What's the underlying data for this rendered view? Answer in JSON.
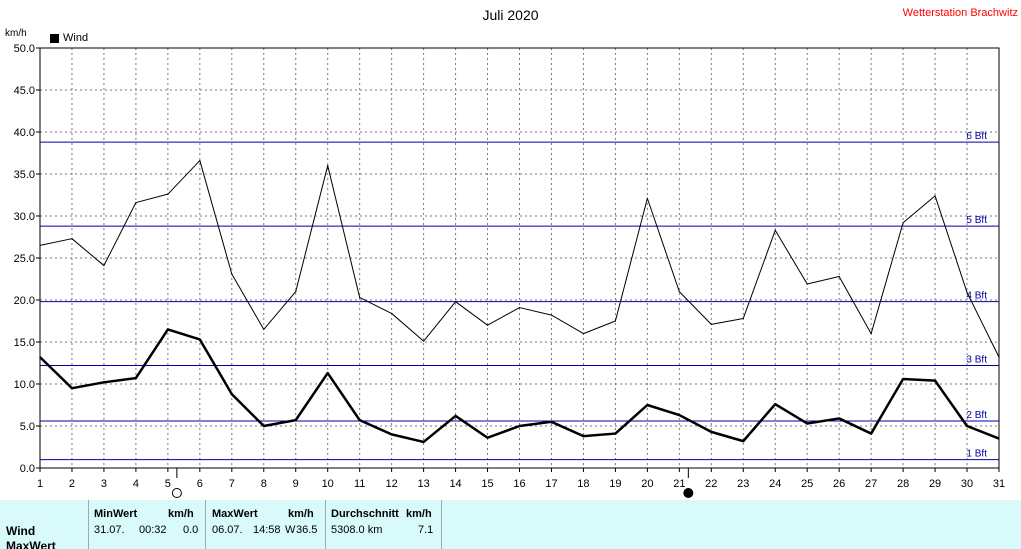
{
  "header": {
    "title": "Juli 2020",
    "station": "Wetterstation Brachwitz",
    "unit": "km/h",
    "legend_label": "Wind"
  },
  "chart_data": {
    "type": "line",
    "title": "Juli 2020",
    "ylabel": "km/h",
    "xlabel": "",
    "ylim": [
      0,
      50
    ],
    "xlim": [
      1,
      31
    ],
    "y_ticks": [
      "0.0",
      "5.0",
      "10.0",
      "15.0",
      "20.0",
      "25.0",
      "30.0",
      "35.0",
      "40.0",
      "45.0",
      "50.0"
    ],
    "x_ticks": [
      "1",
      "2",
      "3",
      "4",
      "5",
      "6",
      "7",
      "8",
      "9",
      "10",
      "11",
      "12",
      "13",
      "14",
      "15",
      "16",
      "17",
      "18",
      "19",
      "20",
      "21",
      "22",
      "23",
      "24",
      "25",
      "26",
      "27",
      "28",
      "29",
      "30",
      "31"
    ],
    "grid": true,
    "legend": "top-left",
    "x": [
      1,
      2,
      3,
      4,
      5,
      6,
      7,
      8,
      9,
      10,
      11,
      12,
      13,
      14,
      15,
      16,
      17,
      18,
      19,
      20,
      21,
      22,
      23,
      24,
      25,
      26,
      27,
      28,
      29,
      30,
      31
    ],
    "series": [
      {
        "name": "Wind",
        "style": "thick",
        "values": [
          13.2,
          9.5,
          10.2,
          10.7,
          16.5,
          15.3,
          8.8,
          5.0,
          5.7,
          11.3,
          5.7,
          4.0,
          3.1,
          6.2,
          3.6,
          5.0,
          5.5,
          3.8,
          4.1,
          7.5,
          6.3,
          4.3,
          3.2,
          7.6,
          5.3,
          5.9,
          4.1,
          10.6,
          10.4,
          5.0,
          3.5
        ]
      },
      {
        "style": "thin",
        "values": [
          26.5,
          27.3,
          24.1,
          31.6,
          32.6,
          36.6,
          23.1,
          16.5,
          21.0,
          36.0,
          20.3,
          18.4,
          15.1,
          19.8,
          17.0,
          19.1,
          18.2,
          16.0,
          17.5,
          32.1,
          21.0,
          17.1,
          17.8,
          28.3,
          21.9,
          22.8,
          16.0,
          29.2,
          32.4,
          20.9,
          13.2
        ]
      }
    ],
    "reference_lines": [
      {
        "label": "1 Bft",
        "value": 1.0
      },
      {
        "label": "2 Bft",
        "value": 5.6
      },
      {
        "label": "3 Bft",
        "value": 12.2
      },
      {
        "label": "4 Bft",
        "value": 19.8
      },
      {
        "label": "5 Bft",
        "value": 28.8
      },
      {
        "label": "6 Bft",
        "value": 38.8
      }
    ],
    "moon_phases": [
      {
        "day": 5,
        "phase": "full-moon"
      },
      {
        "day": 21,
        "phase": "new-moon"
      }
    ],
    "colors": {
      "series": "#000000",
      "beaufort": "#0000a0",
      "grid": "#777777",
      "station": "#ff0000",
      "panel": "#d8fafa"
    }
  },
  "stats": {
    "row_label": "Wind",
    "row_label2": "MaxWert",
    "min": {
      "header": "MinWert",
      "unit": "km/h",
      "date": "31.07.",
      "time": "00:32",
      "value": "0.0"
    },
    "max": {
      "header": "MaxWert",
      "unit": "km/h",
      "date": "06.07.",
      "time": "14:58",
      "dir": "W",
      "value": "36.5"
    },
    "avg": {
      "header": "Durchschnitt",
      "unit": "km/h",
      "distance": "5308.0 km",
      "value": "7.1"
    }
  }
}
